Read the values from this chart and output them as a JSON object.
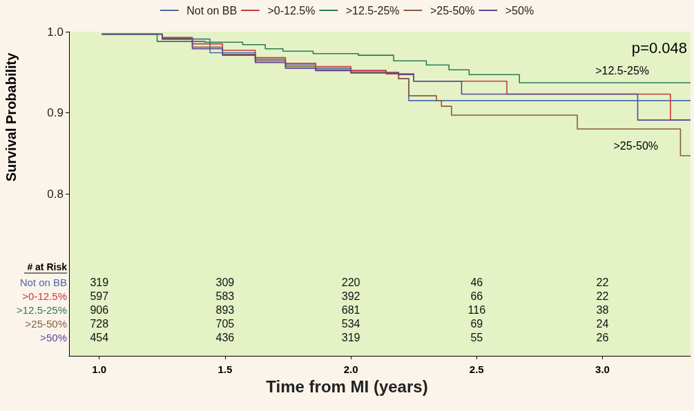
{
  "chart_data": {
    "type": "step",
    "xlabel": "Time from MI (years)",
    "ylabel": "Survival Probability",
    "xlim": [
      0.88,
      3.35
    ],
    "ylim": [
      0.6,
      1.0
    ],
    "xticks": [
      {
        "value": 1,
        "label": "1.0"
      },
      {
        "value": 1.5,
        "label": "1.5"
      },
      {
        "value": 2,
        "label": "2.0"
      },
      {
        "value": 2.5,
        "label": "2.5"
      },
      {
        "value": 3,
        "label": "3.0"
      }
    ],
    "yticks": [
      0.8,
      0.9,
      {
        "value": 1,
        "label": "1.0"
      }
    ],
    "legend": "top",
    "grid": false,
    "series": [
      {
        "name": "Not on BB",
        "color": "#4a6aa8",
        "x": [
          1.01,
          1.25,
          1.44,
          1.62,
          1.74,
          1.86,
          2.0,
          2.14,
          2.19,
          2.23,
          3.35
        ],
        "values": [
          0.997,
          0.991,
          0.974,
          0.966,
          0.959,
          0.955,
          0.952,
          0.948,
          0.942,
          0.915,
          0.915
        ]
      },
      {
        "name": ">0-12.5%",
        "color": "#c83838",
        "x": [
          1.01,
          1.25,
          1.37,
          1.49,
          1.62,
          1.74,
          1.86,
          2.0,
          2.14,
          2.25,
          2.62,
          3.27,
          3.35
        ],
        "values": [
          0.997,
          0.993,
          0.985,
          0.977,
          0.968,
          0.961,
          0.957,
          0.952,
          0.948,
          0.939,
          0.923,
          0.891,
          0.891
        ]
      },
      {
        "name": ">12.5-25%",
        "color": "#2a7a58",
        "x": [
          1.01,
          1.23,
          1.42,
          1.57,
          1.66,
          1.73,
          1.85,
          2.03,
          2.17,
          2.3,
          2.39,
          2.47,
          2.67,
          3.35
        ],
        "values": [
          0.997,
          0.988,
          0.987,
          0.984,
          0.979,
          0.976,
          0.973,
          0.971,
          0.964,
          0.959,
          0.953,
          0.947,
          0.937,
          0.937
        ]
      },
      {
        "name": ">25-50%",
        "color": "#8a5a40",
        "x": [
          1.01,
          1.25,
          1.37,
          1.49,
          1.62,
          1.74,
          1.86,
          2.0,
          2.19,
          2.23,
          2.34,
          2.36,
          2.4,
          2.9,
          3.31,
          3.35
        ],
        "values": [
          0.997,
          0.992,
          0.981,
          0.972,
          0.964,
          0.957,
          0.953,
          0.95,
          0.942,
          0.921,
          0.915,
          0.908,
          0.897,
          0.88,
          0.847,
          0.847
        ]
      },
      {
        "name": ">50%",
        "color": "#5a4498",
        "x": [
          1.01,
          1.25,
          1.37,
          1.49,
          1.62,
          1.74,
          1.86,
          2.0,
          2.19,
          2.25,
          2.44,
          3.14,
          3.35
        ],
        "values": [
          0.997,
          0.991,
          0.979,
          0.971,
          0.962,
          0.955,
          0.952,
          0.949,
          0.947,
          0.939,
          0.923,
          0.891,
          0.891
        ]
      }
    ],
    "annotations": [
      "p=0.048",
      ">12.5-25%",
      ">25-50%",
      "# at Risk",
      "319",
      "309",
      "220",
      "46",
      "22",
      "597",
      "583",
      "392",
      "66",
      "22",
      "906",
      "893",
      "681",
      "116",
      "38",
      "728",
      "705",
      "534",
      "69",
      "24",
      "454",
      "436",
      "319",
      "55",
      "26"
    ]
  }
}
